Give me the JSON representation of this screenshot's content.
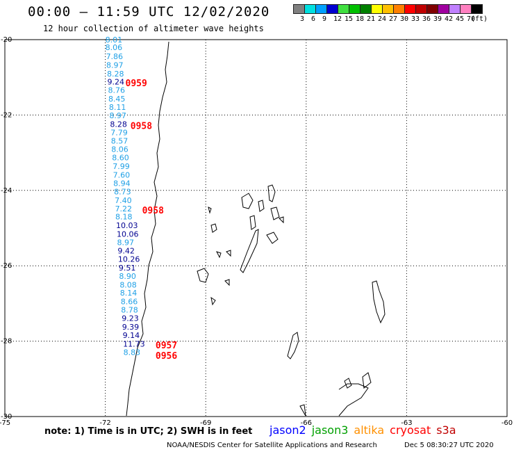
{
  "header": {
    "title": "00:00 – 11:59 UTC 12/02/2020",
    "subtitle": "12 hour collection of altimeter wave heights"
  },
  "scale": {
    "colors": [
      "#808080",
      "#00e0e0",
      "#00a0ff",
      "#0000d0",
      "#40e040",
      "#00c000",
      "#008000",
      "#ffff00",
      "#ffc000",
      "#ff8000",
      "#ff0000",
      "#c00000",
      "#800000",
      "#a000a0",
      "#c080ff",
      "#ff80c0",
      "#000000"
    ],
    "labels": [
      "3",
      "6",
      "9",
      "12",
      "15",
      "18",
      "21",
      "24",
      "27",
      "30",
      "33",
      "36",
      "39",
      "42",
      "45",
      "70",
      "(ft)"
    ]
  },
  "axes": {
    "x_ticks": [
      "-75",
      "-72",
      "-69",
      "-66",
      "-63",
      "-60"
    ],
    "y_ticks": [
      "-20",
      "-22",
      "-24",
      "-26",
      "-28",
      "-30"
    ]
  },
  "observations": [
    {
      "lat": -20.0,
      "lon": -72.0,
      "v": "8.01",
      "c": "#1fa0e6"
    },
    {
      "lat": -20.2,
      "lon": -72.0,
      "v": "8.06",
      "c": "#1fa0e6"
    },
    {
      "lat": -20.44,
      "lon": -71.98,
      "v": "7.86",
      "c": "#1fa0e6"
    },
    {
      "lat": -20.67,
      "lon": -71.97,
      "v": "8.97",
      "c": "#1fa0e6"
    },
    {
      "lat": -20.9,
      "lon": -71.95,
      "v": "8.28",
      "c": "#1fa0e6"
    },
    {
      "lat": -21.12,
      "lon": -71.94,
      "v": "9.24",
      "c": "#000090"
    },
    {
      "lat": -21.34,
      "lon": -71.92,
      "v": "8.76",
      "c": "#1fa0e6"
    },
    {
      "lat": -21.57,
      "lon": -71.91,
      "v": "8.45",
      "c": "#1fa0e6"
    },
    {
      "lat": -21.79,
      "lon": -71.89,
      "v": "8.11",
      "c": "#1fa0e6"
    },
    {
      "lat": -22.01,
      "lon": -71.88,
      "v": "8.97",
      "c": "#1fa0e6"
    },
    {
      "lat": -22.24,
      "lon": -71.86,
      "v": "8.28",
      "c": "#000090"
    },
    {
      "lat": -22.46,
      "lon": -71.84,
      "v": "7.79",
      "c": "#1fa0e6"
    },
    {
      "lat": -22.68,
      "lon": -71.83,
      "v": "8.57",
      "c": "#1fa0e6"
    },
    {
      "lat": -22.91,
      "lon": -71.82,
      "v": "8.06",
      "c": "#1fa0e6"
    },
    {
      "lat": -23.13,
      "lon": -71.8,
      "v": "8.60",
      "c": "#1fa0e6"
    },
    {
      "lat": -23.36,
      "lon": -71.78,
      "v": "7.99",
      "c": "#1fa0e6"
    },
    {
      "lat": -23.59,
      "lon": -71.77,
      "v": "7.60",
      "c": "#1fa0e6"
    },
    {
      "lat": -23.81,
      "lon": -71.76,
      "v": "8.94",
      "c": "#1fa0e6"
    },
    {
      "lat": -24.03,
      "lon": -71.74,
      "v": "8.73",
      "c": "#1fa0e6"
    },
    {
      "lat": -24.26,
      "lon": -71.72,
      "v": "7.40",
      "c": "#1fa0e6"
    },
    {
      "lat": -24.48,
      "lon": -71.71,
      "v": "7.22",
      "c": "#1fa0e6"
    },
    {
      "lat": -24.7,
      "lon": -71.7,
      "v": "8.18",
      "c": "#1fa0e6"
    },
    {
      "lat": -24.93,
      "lon": -71.68,
      "v": "10.03",
      "c": "#000090"
    },
    {
      "lat": -25.16,
      "lon": -71.66,
      "v": "10.06",
      "c": "#000090"
    },
    {
      "lat": -25.38,
      "lon": -71.65,
      "v": "8.97",
      "c": "#1fa0e6"
    },
    {
      "lat": -25.6,
      "lon": -71.63,
      "v": "9.42",
      "c": "#000090"
    },
    {
      "lat": -25.82,
      "lon": -71.62,
      "v": "10.26",
      "c": "#000090"
    },
    {
      "lat": -26.05,
      "lon": -71.6,
      "v": "9.51",
      "c": "#000090"
    },
    {
      "lat": -26.27,
      "lon": -71.59,
      "v": "8.90",
      "c": "#1fa0e6"
    },
    {
      "lat": -26.5,
      "lon": -71.57,
      "v": "8.08",
      "c": "#1fa0e6"
    },
    {
      "lat": -26.72,
      "lon": -71.56,
      "v": "8.14",
      "c": "#1fa0e6"
    },
    {
      "lat": -26.95,
      "lon": -71.54,
      "v": "8.66",
      "c": "#1fa0e6"
    },
    {
      "lat": -27.17,
      "lon": -71.53,
      "v": "8.78",
      "c": "#1fa0e6"
    },
    {
      "lat": -27.39,
      "lon": -71.51,
      "v": "9.23",
      "c": "#000090"
    },
    {
      "lat": -27.62,
      "lon": -71.5,
      "v": "9.39",
      "c": "#000090"
    },
    {
      "lat": -27.84,
      "lon": -71.48,
      "v": "9.14",
      "c": "#000090"
    },
    {
      "lat": -28.07,
      "lon": -71.47,
      "v": "11.73",
      "c": "#000090"
    },
    {
      "lat": -28.29,
      "lon": -71.46,
      "v": "8.83",
      "c": "#1fa0e6"
    }
  ],
  "passes": [
    {
      "lat": -21.14,
      "lon": -71.4,
      "t": "0959"
    },
    {
      "lat": -22.28,
      "lon": -71.25,
      "t": "0958"
    },
    {
      "lat": -24.52,
      "lon": -70.9,
      "t": "0958"
    },
    {
      "lat": -28.1,
      "lon": -70.5,
      "t": "0957"
    },
    {
      "lat": -28.38,
      "lon": -70.5,
      "t": "0956"
    }
  ],
  "footer": {
    "note": "note: 1) Time is in UTC; 2) SWH is in feet",
    "satellites": [
      {
        "name": "jason2",
        "color": "#0000ff"
      },
      {
        "name": "jason3",
        "color": "#00a000"
      },
      {
        "name": "altika",
        "color": "#ff9000"
      },
      {
        "name": "cryosat",
        "color": "#ff0000"
      },
      {
        "name": "s3a",
        "color": "#c00000"
      }
    ],
    "credit": "NOAA/NESDIS Center for Satellite Applications and Research",
    "timestamp": "Dec  5 08:30:27 UTC 2020"
  }
}
